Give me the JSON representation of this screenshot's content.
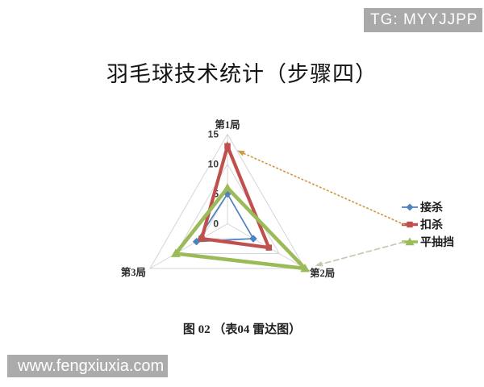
{
  "badge": {
    "label": "TG: MYYJJPP",
    "bg": "#a9a9a9"
  },
  "title": "羽毛球技术统计（步骤四）",
  "caption": "图 02 （表04 雷达图）",
  "watermark": {
    "label": "www.fengxiuxia.com",
    "bg": "#ababab"
  },
  "chart_data": {
    "type": "radar",
    "title": "羽毛球技术统计（步骤四）",
    "categories": [
      "第1局",
      "第2局",
      "第3局"
    ],
    "ticks": [
      0,
      5,
      10,
      15
    ],
    "max": 15,
    "grid": true,
    "grid_color": "#d5d5d5",
    "legend_position": "right",
    "series": [
      {
        "name": "接杀",
        "values": [
          5,
          5,
          6
        ],
        "color": "#4f81bd",
        "marker": "diamond",
        "line_width": 1.7
      },
      {
        "name": "扣杀",
        "values": [
          13,
          8,
          5
        ],
        "color": "#c0504d",
        "marker": "square",
        "line_width": 4.2
      },
      {
        "name": "平抽挡",
        "values": [
          6,
          15,
          10
        ],
        "color": "#9bbb59",
        "marker": "triangle",
        "line_width": 4.6
      }
    ],
    "annotations": [
      {
        "style": "dotted",
        "color": "#cf9c43",
        "series": "扣杀",
        "category": "第1局"
      },
      {
        "style": "dashed",
        "color": "#c2cbb2",
        "series": "平抽挡",
        "category": "第2局"
      }
    ]
  }
}
